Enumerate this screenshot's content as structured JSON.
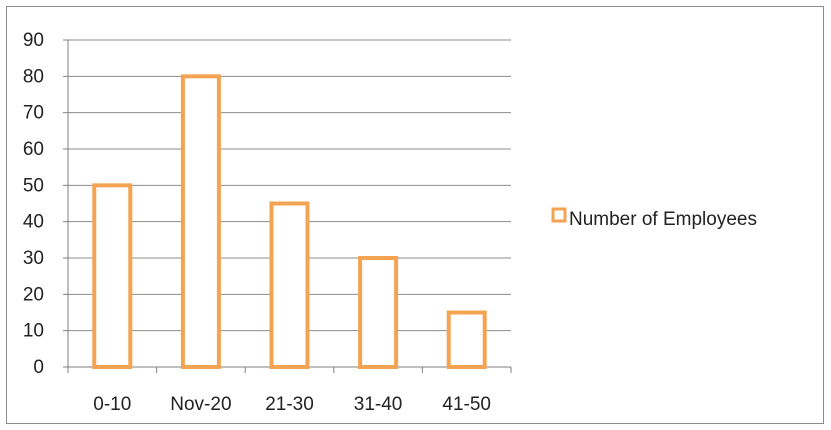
{
  "colors": {
    "bar_stroke": "#F4A352",
    "bar_fill": "#FFFFFF",
    "gridline": "#8C8C8C",
    "axis": "#7F7F7F",
    "text": "#222222"
  },
  "chart_data": {
    "type": "bar",
    "categories": [
      "0-10",
      "Nov-20",
      "21-30",
      "31-40",
      "41-50"
    ],
    "series": [
      {
        "name": "Number of Employees",
        "values": [
          50,
          80,
          45,
          30,
          15
        ]
      }
    ],
    "ylim": [
      0,
      90
    ],
    "yticks": [
      0,
      10,
      20,
      30,
      40,
      50,
      60,
      70,
      80,
      90
    ],
    "ytick_labels": [
      "0",
      "10",
      "20",
      "30",
      "40",
      "50",
      "60",
      "70",
      "80",
      "90"
    ],
    "grid": true,
    "legend_position": "right",
    "title": "",
    "xlabel": "",
    "ylabel": ""
  }
}
